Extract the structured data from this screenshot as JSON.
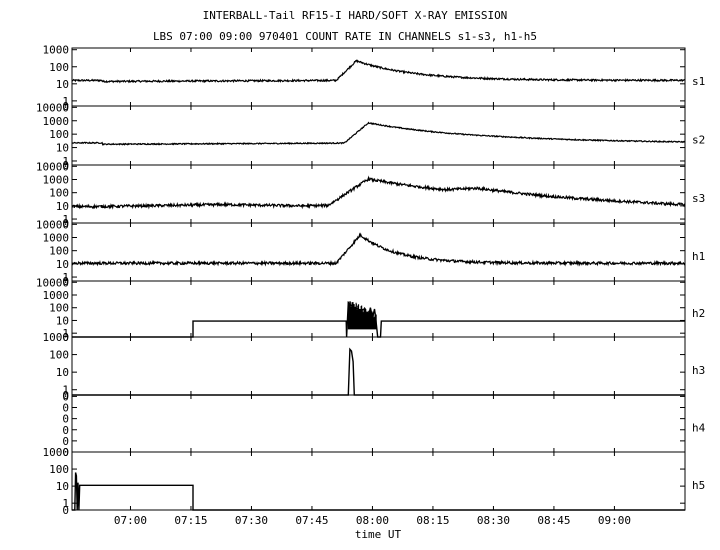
{
  "chart_data": {
    "type": "line",
    "title": "INTERBALL-Tail RF15-I HARD/SOFT X-RAY EMISSION",
    "subtitle": "LBS 07:00 09:00 970401  COUNT RATE IN CHANNELS s1-s3, h1-h5",
    "xlabel": "time UT",
    "x_ticks": [
      "07:00",
      "07:15",
      "07:30",
      "07:45",
      "08:00",
      "08:15",
      "08:30",
      "08:45",
      "09:00"
    ],
    "x_ticks_min": [
      7,
      22,
      37,
      52,
      67,
      82,
      97,
      112,
      127
    ],
    "xlim_min": [
      -7.5,
      144.5
    ],
    "y_scale": "log",
    "grid": false,
    "panels": [
      {
        "name": "s1",
        "ymin": -0.3,
        "ymax": 3.1,
        "ticks": [
          "1000",
          "100",
          "10",
          "1",
          "0"
        ],
        "tick_vals": [
          3,
          2,
          1,
          0,
          -0.3
        ],
        "type": "noise",
        "base": [
          [
            0,
            1.14
          ],
          [
            60,
            1.2
          ],
          [
            144.5,
            1.2
          ]
        ],
        "noise": 0.05,
        "peak": {
          "t0": 58,
          "rise": 5,
          "amp": 1.15,
          "decay": 14
        }
      },
      {
        "name": "s2",
        "ymin": -0.3,
        "ymax": 4.1,
        "ticks": [
          "10000",
          "1000",
          "100",
          "10",
          "1",
          "0"
        ],
        "tick_vals": [
          4,
          3,
          2,
          1,
          0,
          -0.3
        ],
        "type": "noise",
        "base": [
          [
            0,
            1.25
          ],
          [
            40,
            1.3
          ],
          [
            100,
            1.4
          ],
          [
            144.5,
            1.35
          ]
        ],
        "noise": 0.04,
        "peak": {
          "t0": 60,
          "rise": 6,
          "amp": 1.5,
          "decay": 26
        }
      },
      {
        "name": "s3",
        "ymin": -0.3,
        "ymax": 4.1,
        "ticks": [
          "10000",
          "1000",
          "100",
          "10",
          "1",
          "0"
        ],
        "tick_vals": [
          4,
          3,
          2,
          1,
          0,
          -0.3
        ],
        "type": "noise",
        "base": [
          [
            0,
            0.95
          ],
          [
            30,
            1.1
          ],
          [
            50,
            1.0
          ],
          [
            85,
            1.2
          ],
          [
            93,
            1.55
          ],
          [
            110,
            1.3
          ],
          [
            144.5,
            0.95
          ]
        ],
        "noise": 0.1,
        "peak": {
          "t0": 56,
          "rise": 10,
          "amp": 1.95,
          "decay": 30
        }
      },
      {
        "name": "h1",
        "ymin": -0.3,
        "ymax": 4.1,
        "ticks": [
          "10000",
          "1000",
          "100",
          "10",
          "1",
          "0"
        ],
        "tick_vals": [
          4,
          3,
          2,
          1,
          0,
          -0.3
        ],
        "type": "noise",
        "base": [
          [
            0,
            1.05
          ],
          [
            144.5,
            1.05
          ]
        ],
        "noise": 0.1,
        "peak": {
          "t0": 58,
          "rise": 6,
          "amp": 2.15,
          "decay": 9
        }
      },
      {
        "name": "h2",
        "ymin": -0.3,
        "ymax": 4.1,
        "ticks": [
          "10000",
          "1000",
          "100",
          "10",
          "1",
          "0"
        ],
        "tick_vals": [
          4,
          3,
          2,
          1,
          0,
          -0.3
        ],
        "type": "step",
        "path": [
          [
            -7.5,
            -0.3
          ],
          [
            22.5,
            -0.3
          ],
          [
            22.5,
            0.95
          ],
          [
            60.5,
            0.95
          ],
          [
            60.6,
            -0.3
          ],
          [
            61,
            2.4
          ],
          [
            62,
            2.1
          ],
          [
            64,
            1.8
          ],
          [
            65,
            1.9
          ],
          [
            66,
            1.3
          ],
          [
            66.5,
            2.0
          ],
          [
            67,
            1.2
          ],
          [
            67.5,
            1.9
          ],
          [
            68,
            0.6
          ],
          [
            68.3,
            -0.3
          ],
          [
            69,
            -0.3
          ],
          [
            69.2,
            0.95
          ],
          [
            144.5,
            0.95
          ]
        ]
      },
      {
        "name": "h3",
        "ymin": -0.3,
        "ymax": 3.0,
        "ticks": [
          "1000",
          "100",
          "10",
          "1",
          "0"
        ],
        "tick_vals": [
          3,
          2,
          1,
          0,
          -0.3
        ],
        "type": "step",
        "path": [
          [
            -7.5,
            -0.3
          ],
          [
            61,
            -0.3
          ],
          [
            61.4,
            2.3
          ],
          [
            61.8,
            2.2
          ],
          [
            62.2,
            1.6
          ],
          [
            62.5,
            -0.3
          ],
          [
            144.5,
            -0.3
          ]
        ]
      },
      {
        "name": "h4",
        "ymin": -0.5,
        "ymax": 3.6,
        "ticks": [
          "0",
          "0",
          "0",
          "0",
          "0",
          "0"
        ],
        "tick_vals": [
          3.5,
          2.7,
          1.9,
          1.1,
          0.3,
          -0.5
        ],
        "type": "empty"
      },
      {
        "name": "h5",
        "ymin": -0.4,
        "ymax": 3.0,
        "ticks": [
          "1000",
          "100",
          "10",
          "1",
          "0"
        ],
        "tick_vals": [
          3,
          2,
          1,
          0,
          -0.4
        ],
        "type": "step",
        "path": [
          [
            -7.5,
            -0.4
          ],
          [
            -6.8,
            -0.4
          ],
          [
            -6.6,
            1.8
          ],
          [
            -6.4,
            1.6
          ],
          [
            -6.2,
            -0.4
          ],
          [
            -6,
            1.2
          ],
          [
            -5.8,
            -0.4
          ],
          [
            -5.6,
            1.05
          ],
          [
            22.5,
            1.05
          ],
          [
            22.5,
            -0.4
          ],
          [
            144.5,
            -0.4
          ]
        ]
      }
    ]
  }
}
